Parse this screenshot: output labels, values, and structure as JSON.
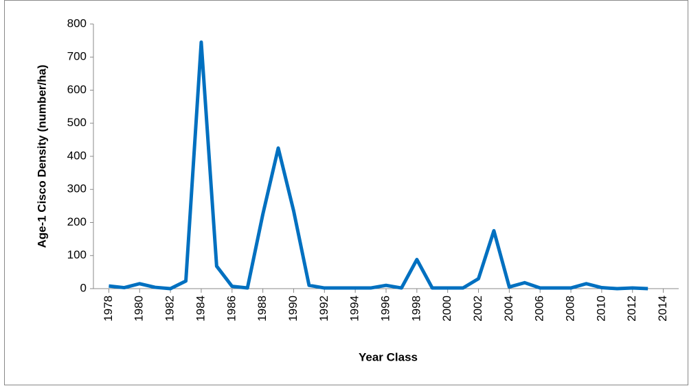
{
  "chart_data": {
    "type": "line",
    "xlabel": "Year Class",
    "ylabel": "Age-1 Cisco Density (number/ha)",
    "x": [
      1978,
      1979,
      1980,
      1981,
      1982,
      1983,
      1984,
      1985,
      1986,
      1987,
      1988,
      1989,
      1990,
      1991,
      1992,
      1993,
      1994,
      1995,
      1996,
      1997,
      1998,
      1999,
      2000,
      2001,
      2002,
      2003,
      2004,
      2005,
      2006,
      2007,
      2008,
      2009,
      2010,
      2011,
      2012,
      2013
    ],
    "series": [
      {
        "color": "#0070c0",
        "values": [
          8,
          3,
          15,
          4,
          0,
          23,
          745,
          68,
          7,
          2,
          225,
          425,
          235,
          10,
          2,
          2,
          2,
          2,
          10,
          2,
          88,
          2,
          2,
          2,
          30,
          175,
          5,
          18,
          2,
          2,
          2,
          15,
          3,
          0,
          2,
          0
        ]
      }
    ],
    "xlim": [
      1977,
      2015
    ],
    "xticks": [
      1978,
      1980,
      1982,
      1984,
      1986,
      1988,
      1990,
      1992,
      1994,
      1996,
      1998,
      2000,
      2002,
      2004,
      2006,
      2008,
      2010,
      2012,
      2014
    ],
    "ylim": [
      0,
      800
    ],
    "yticks": [
      0,
      100,
      200,
      300,
      400,
      500,
      600,
      700,
      800
    ],
    "grid": false
  }
}
